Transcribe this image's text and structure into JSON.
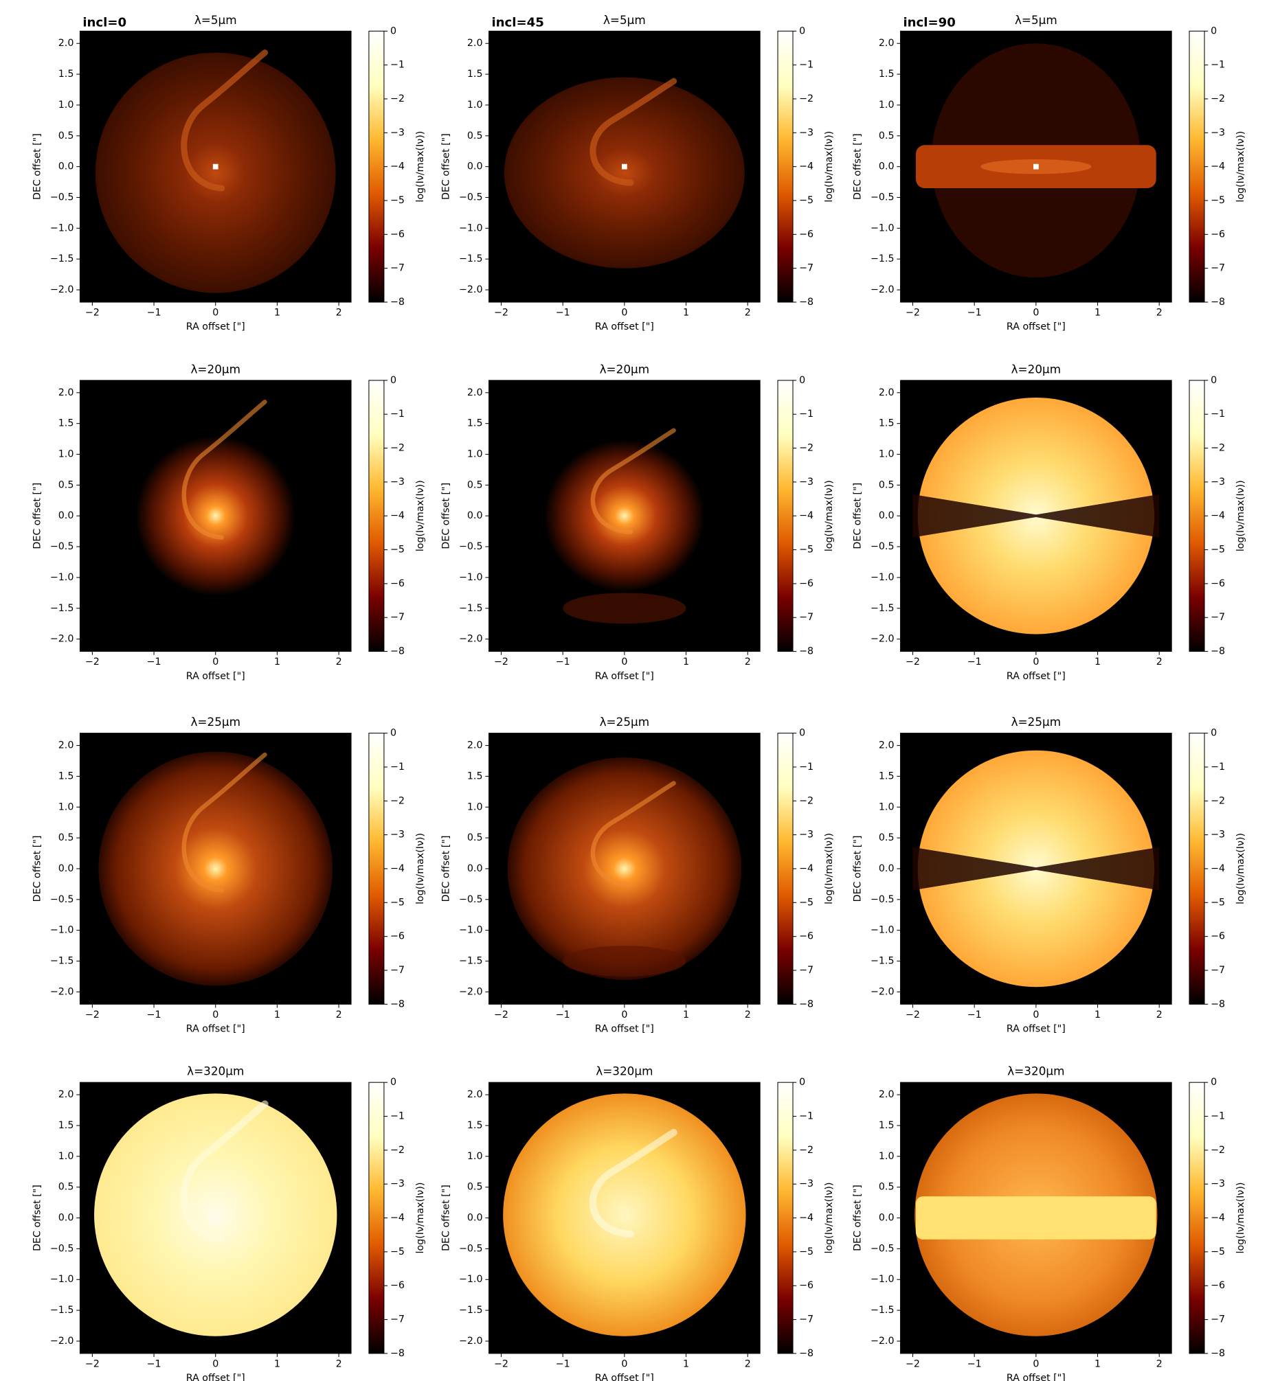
{
  "axes": {
    "xlabel": "RA offset [\"]",
    "ylabel": "DEC offset [\"]",
    "colorbar_label": "log(Iν/max(Iν))",
    "xlim": [
      -2.2,
      2.2
    ],
    "ylim": [
      -2.2,
      2.2
    ],
    "xticks": [
      {
        "value": -2,
        "label": "−2"
      },
      {
        "value": -1,
        "label": "−1"
      },
      0,
      1,
      2
    ],
    "yticks": [
      {
        "value": -2,
        "label": "−2.0"
      },
      {
        "value": -1.5,
        "label": "−1.5"
      },
      {
        "value": -1,
        "label": "−1.0"
      },
      {
        "value": -0.5,
        "label": "−0.5"
      },
      {
        "value": 0,
        "label": "0.0"
      },
      0.5,
      {
        "value": 1,
        "label": "1.0"
      },
      1.5,
      {
        "value": 2,
        "label": "2.0"
      }
    ],
    "clim": [
      -8,
      0
    ],
    "cticks": [
      0,
      {
        "value": -1,
        "label": "−1"
      },
      {
        "value": -2,
        "label": "−2"
      },
      {
        "value": -3,
        "label": "−3"
      },
      {
        "value": -4,
        "label": "−4"
      },
      {
        "value": -5,
        "label": "−5"
      },
      {
        "value": -6,
        "label": "−6"
      },
      {
        "value": -7,
        "label": "−7"
      },
      {
        "value": -8,
        "label": "−8"
      }
    ],
    "colormap": [
      "#000000",
      "#7a0000",
      "#e05a00",
      "#ffb830",
      "#ffffc0",
      "#ffffff"
    ]
  },
  "chart_data": [
    {
      "type": "image",
      "title": "λ=5μm",
      "annotation": "incl=0"
    },
    {
      "type": "image",
      "title": "λ=5μm",
      "annotation": "incl=45"
    },
    {
      "type": "image",
      "title": "λ=5μm",
      "annotation": "incl=90"
    },
    {
      "type": "image",
      "title": "λ=20μm"
    },
    {
      "type": "image",
      "title": "λ=20μm"
    },
    {
      "type": "image",
      "title": "λ=20μm"
    },
    {
      "type": "image",
      "title": "λ=25μm"
    },
    {
      "type": "image",
      "title": "λ=25μm"
    },
    {
      "type": "image",
      "title": "λ=25μm"
    },
    {
      "type": "image",
      "title": "λ=320μm"
    },
    {
      "type": "image",
      "title": "λ=320μm"
    },
    {
      "type": "image",
      "title": "λ=320μm"
    }
  ]
}
